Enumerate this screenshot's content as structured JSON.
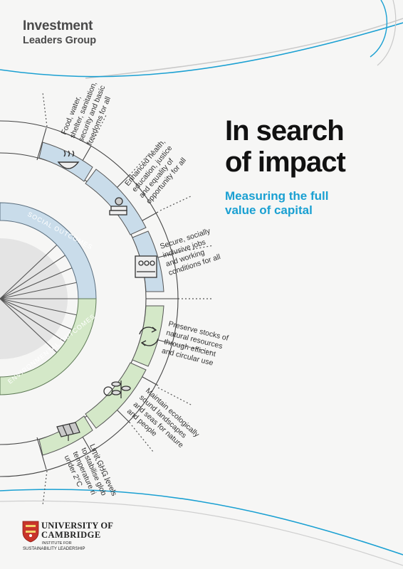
{
  "brand": {
    "line1": "Investment",
    "line2": "Leaders Group"
  },
  "title": {
    "line1": "In search",
    "line2": "of impact"
  },
  "subtitle": {
    "line1": "Measuring the full",
    "line2": "value of capital"
  },
  "wheel": {
    "social_label": "SOCIAL OUTCOMES",
    "environmental_label": "ENVIRONMENTAL OUTCOMES",
    "colors": {
      "social": "#c9dcea",
      "environmental": "#d4e8c8",
      "accent_blue": "#1aa0d2"
    }
  },
  "outcomes": [
    {
      "icon": "food-bowl-icon",
      "lines": [
        "Food, water,",
        "shelter, sanitation,",
        "security and basic",
        "freedoms for all"
      ]
    },
    {
      "icon": "education-books-icon",
      "lines": [
        "Enhanced health,",
        "education, justice",
        "and equality of",
        "opportunity for all"
      ]
    },
    {
      "icon": "workers-icon",
      "lines": [
        "Secure, socially",
        "inclusive jobs",
        "and working",
        "conditions for all"
      ]
    },
    {
      "icon": "recycle-icon",
      "lines": [
        "Preserve stocks of",
        "natural resources",
        "through efficient",
        "and circular use"
      ]
    },
    {
      "icon": "plant-leaves-icon",
      "lines": [
        "Maintain ecologically",
        "sound landscapes",
        "and seas for nature",
        "and people"
      ]
    },
    {
      "icon": "solar-panel-icon",
      "lines": [
        "Limit GHG levels",
        "to stabilise glob",
        "temperature ri",
        "under 2°C"
      ]
    }
  ],
  "university": {
    "line1": "UNIVERSITY OF",
    "line2": "CAMBRIDGE",
    "line3": "INSTITUTE FOR",
    "line4": "SUSTAINABILITY LEADERSHIP",
    "icon": "cambridge-crest-icon"
  }
}
